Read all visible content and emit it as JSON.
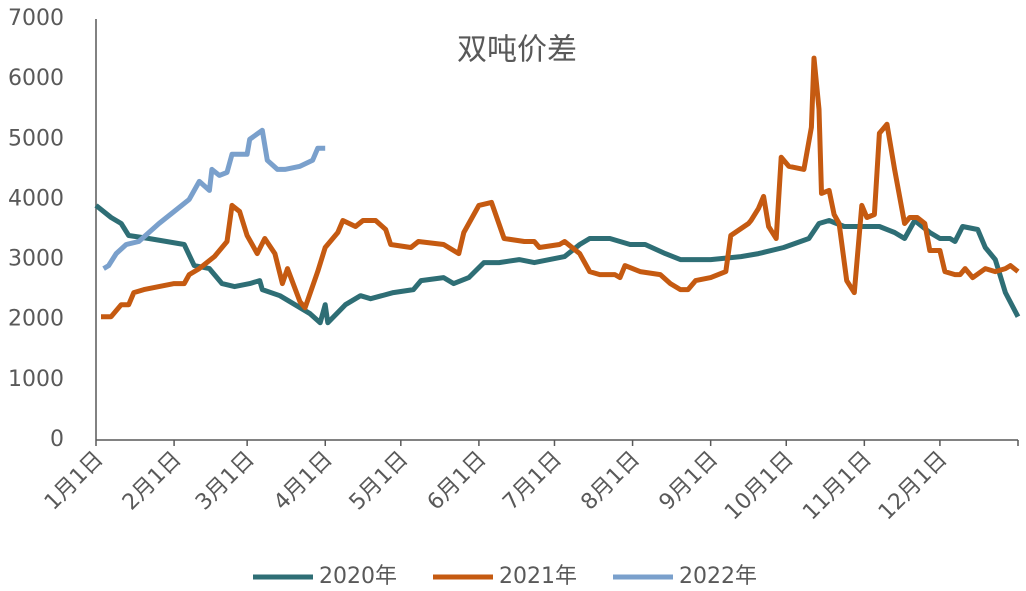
{
  "chart_data": {
    "type": "line",
    "title": "双吨价差",
    "xlim": [
      0,
      366
    ],
    "xticks": [
      {
        "value": 0,
        "label": "1月1日"
      },
      {
        "value": 31,
        "label": "2月1日"
      },
      {
        "value": 60,
        "label": "3月1日"
      },
      {
        "value": 91,
        "label": "4月1日"
      },
      {
        "value": 121,
        "label": "5月1日"
      },
      {
        "value": 152,
        "label": "6月1日"
      },
      {
        "value": 182,
        "label": "7月1日"
      },
      {
        "value": 213,
        "label": "8月1日"
      },
      {
        "value": 244,
        "label": "9月1日"
      },
      {
        "value": 274,
        "label": "10月1日"
      },
      {
        "value": 305,
        "label": "11月1日"
      },
      {
        "value": 335,
        "label": "12月1日"
      },
      {
        "value": 366,
        "label": null
      }
    ],
    "ylim": [
      0,
      7000
    ],
    "yticks": [
      0,
      1000,
      2000,
      3000,
      4000,
      5000,
      6000,
      7000
    ],
    "grid": false,
    "legend": "bottom",
    "series": [
      {
        "name": "2020年",
        "color": "#2e6e75",
        "x": [
          0,
          6,
          10,
          13,
          21,
          35,
          39,
          45,
          50,
          55,
          61,
          65,
          66,
          73,
          79,
          85,
          89,
          91,
          92,
          99,
          105,
          109,
          118,
          126,
          129,
          138,
          142,
          148,
          154,
          160,
          168,
          174,
          186,
          192,
          196,
          204,
          212,
          218,
          226,
          232,
          244,
          256,
          263,
          273,
          283,
          287,
          291,
          297,
          303,
          311,
          317,
          321,
          325,
          331,
          335,
          339,
          341,
          344,
          350,
          353,
          357,
          361,
          366
        ],
        "values": [
          3900,
          3700,
          3600,
          3400,
          3350,
          3250,
          2900,
          2850,
          2600,
          2550,
          2600,
          2650,
          2500,
          2400,
          2250,
          2100,
          1950,
          2250,
          1950,
          2250,
          2400,
          2350,
          2450,
          2500,
          2650,
          2700,
          2600,
          2700,
          2950,
          2950,
          3000,
          2950,
          3050,
          3250,
          3350,
          3350,
          3250,
          3250,
          3100,
          3000,
          3000,
          3050,
          3100,
          3200,
          3350,
          3600,
          3650,
          3550,
          3550,
          3550,
          3450,
          3350,
          3650,
          3450,
          3350,
          3350,
          3300,
          3550,
          3500,
          3200,
          3000,
          2450,
          2050
        ]
      },
      {
        "name": "2021年",
        "color": "#c55a11",
        "x": [
          2,
          6,
          10,
          13,
          15,
          19,
          25,
          31,
          35,
          37,
          41,
          47,
          52,
          54,
          57,
          60,
          62,
          64,
          67,
          71,
          74,
          76,
          81,
          83,
          88,
          91,
          96,
          98,
          103,
          106,
          111,
          115,
          117,
          125,
          128,
          138,
          144,
          146,
          152,
          157,
          162,
          170,
          174,
          176,
          184,
          186,
          192,
          196,
          200,
          206,
          208,
          210,
          216,
          224,
          228,
          232,
          235,
          238,
          244,
          250,
          252,
          259,
          260,
          263,
          265,
          267,
          270,
          272,
          275,
          281,
          284,
          285,
          287,
          288,
          291,
          293,
          295,
          298,
          301,
          304,
          306,
          309,
          311,
          314,
          317,
          321,
          323,
          326,
          329,
          331,
          335,
          337,
          341,
          343,
          345,
          348,
          353,
          357,
          361,
          363,
          366
        ],
        "values": [
          2050,
          2050,
          2250,
          2250,
          2450,
          2500,
          2550,
          2600,
          2600,
          2750,
          2850,
          3050,
          3300,
          3900,
          3800,
          3400,
          3250,
          3100,
          3350,
          3100,
          2600,
          2850,
          2300,
          2200,
          2800,
          3200,
          3450,
          3650,
          3550,
          3650,
          3650,
          3500,
          3250,
          3200,
          3300,
          3250,
          3100,
          3450,
          3900,
          3950,
          3350,
          3300,
          3300,
          3200,
          3250,
          3300,
          3100,
          2800,
          2750,
          2750,
          2700,
          2900,
          2800,
          2750,
          2600,
          2500,
          2500,
          2650,
          2700,
          2800,
          3400,
          3600,
          3650,
          3850,
          4050,
          3550,
          3350,
          4700,
          4550,
          4500,
          5200,
          6350,
          5500,
          4100,
          4150,
          3750,
          3600,
          2650,
          2450,
          3900,
          3700,
          3750,
          5100,
          5250,
          4500,
          3600,
          3700,
          3700,
          3600,
          3150,
          3150,
          2800,
          2750,
          2750,
          2850,
          2700,
          2850,
          2800,
          2850,
          2900,
          2800
        ]
      },
      {
        "name": "2022年",
        "color": "#7aa0cc",
        "x": [
          3,
          5,
          8,
          12,
          17,
          21,
          25,
          31,
          37,
          41,
          45,
          46,
          49,
          52,
          54,
          60,
          61,
          66,
          68,
          72,
          75,
          81,
          86,
          88,
          91
        ],
        "values": [
          2850,
          2900,
          3100,
          3250,
          3300,
          3450,
          3600,
          3800,
          4000,
          4300,
          4150,
          4500,
          4400,
          4450,
          4750,
          4750,
          5000,
          5150,
          4650,
          4500,
          4500,
          4550,
          4650,
          4850,
          4850
        ]
      }
    ]
  }
}
